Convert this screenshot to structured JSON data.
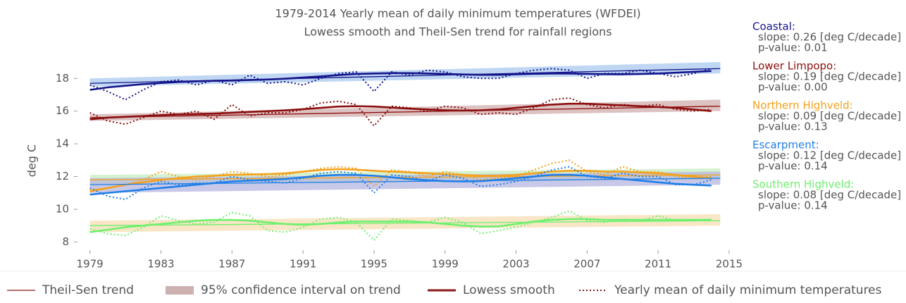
{
  "chart_data": {
    "type": "line",
    "title": "1979-2014 Yearly mean of daily minimum temperatures (WFDEI)",
    "subtitle": "Lowess smooth and Theil-Sen trend for rainfall regions",
    "y_label": "deg C",
    "x": [
      1979,
      1980,
      1981,
      1982,
      1983,
      1984,
      1985,
      1986,
      1987,
      1988,
      1989,
      1990,
      1991,
      1992,
      1993,
      1994,
      1995,
      1996,
      1997,
      1998,
      1999,
      2000,
      2001,
      2002,
      2003,
      2004,
      2005,
      2006,
      2007,
      2008,
      2009,
      2010,
      2011,
      2012,
      2013,
      2014
    ],
    "trend_x": [
      1979,
      2014.5
    ],
    "xlim": [
      1978.3,
      2015.2
    ],
    "ylim": [
      7.5,
      21.5
    ],
    "xticks": [
      1979,
      1983,
      1987,
      1991,
      1995,
      1999,
      2003,
      2007,
      2011,
      2015
    ],
    "yticks": [
      8,
      10,
      12,
      14,
      16,
      18
    ],
    "grid": false,
    "legend": [
      "Theil-Sen trend",
      "95% confidence interval on trend",
      "Lowess smooth",
      "Yearly mean of daily minimum temperatures"
    ],
    "legend_color": "#8b1a1a",
    "legend_band_color": "#cdb0b0",
    "series": [
      {
        "name": "Coastal:",
        "color": "#14148a",
        "band_color": "#a9c9ef",
        "annotation": [
          "slope: 0.26 [deg C/decade]",
          "p-value: 0.01"
        ],
        "values": [
          17.6,
          17.2,
          16.7,
          17.3,
          17.8,
          17.9,
          17.6,
          17.9,
          17.6,
          18.2,
          17.7,
          17.8,
          17.6,
          18.0,
          18.3,
          18.4,
          17.2,
          18.4,
          18.2,
          18.5,
          18.4,
          18.1,
          18.0,
          18.0,
          18.3,
          18.5,
          18.6,
          18.5,
          18.0,
          18.3,
          18.3,
          18.5,
          18.3,
          18.1,
          18.3,
          18.6
        ],
        "lowess": [
          17.3,
          17.45,
          17.55,
          17.65,
          17.72,
          17.78,
          17.82,
          17.85,
          17.87,
          17.9,
          17.93,
          17.98,
          18.05,
          18.12,
          18.2,
          18.27,
          18.3,
          18.32,
          18.32,
          18.3,
          18.27,
          18.24,
          18.22,
          18.22,
          18.25,
          18.28,
          18.3,
          18.3,
          18.28,
          18.26,
          18.25,
          18.27,
          18.3,
          18.35,
          18.4,
          18.45
        ],
        "trend": [
          17.7,
          18.6
        ],
        "ci_lower": [
          17.5,
          18.3
        ],
        "ci_upper": [
          18.0,
          19.0
        ]
      },
      {
        "name": "Lower Limpopo:",
        "color": "#8b0d0d",
        "band_color": "#d2aeae",
        "annotation": [
          "slope: 0.19 [deg C/decade]",
          "p-value: 0.00"
        ],
        "values": [
          15.9,
          15.4,
          15.2,
          15.6,
          16.0,
          15.8,
          16.0,
          15.5,
          16.4,
          15.7,
          15.9,
          15.9,
          16.1,
          16.5,
          16.6,
          16.4,
          15.1,
          16.3,
          16.2,
          16.0,
          16.3,
          16.2,
          15.8,
          15.9,
          15.8,
          16.2,
          16.7,
          16.8,
          16.4,
          16.2,
          16.4,
          16.3,
          16.4,
          16.1,
          16.0,
          16.1
        ],
        "lowess": [
          15.5,
          15.6,
          15.65,
          15.7,
          15.75,
          15.8,
          15.82,
          15.85,
          15.9,
          15.95,
          16.0,
          16.05,
          16.12,
          16.2,
          16.28,
          16.3,
          16.28,
          16.22,
          16.15,
          16.1,
          16.05,
          16.03,
          16.05,
          16.1,
          16.2,
          16.3,
          16.4,
          16.45,
          16.45,
          16.4,
          16.35,
          16.3,
          16.25,
          16.2,
          16.1,
          16.0
        ],
        "trend": [
          15.6,
          16.3
        ],
        "ci_lower": [
          15.4,
          16.0
        ],
        "ci_upper": [
          15.8,
          16.7
        ]
      },
      {
        "name": "Northern Highveld:",
        "color": "#f5a11c",
        "band_color": "#c5eec0",
        "annotation": [
          "slope: 0.09 [deg C/decade]",
          "p-value: 0.13"
        ],
        "values": [
          11.2,
          11.3,
          11.5,
          11.8,
          12.3,
          12.0,
          11.8,
          12.0,
          12.3,
          12.2,
          12.0,
          12.1,
          12.3,
          12.5,
          12.6,
          12.5,
          11.4,
          12.4,
          12.3,
          12.0,
          12.3,
          12.1,
          11.8,
          11.9,
          12.0,
          12.4,
          12.8,
          13.0,
          12.3,
          12.1,
          12.6,
          12.3,
          12.3,
          12.0,
          11.9,
          12.0
        ],
        "lowess": [
          11.1,
          11.3,
          11.5,
          11.65,
          11.8,
          11.9,
          12.0,
          12.05,
          12.1,
          12.12,
          12.15,
          12.2,
          12.3,
          12.4,
          12.45,
          12.42,
          12.35,
          12.3,
          12.25,
          12.2,
          12.15,
          12.1,
          12.05,
          12.05,
          12.1,
          12.2,
          12.3,
          12.35,
          12.35,
          12.3,
          12.3,
          12.25,
          12.2,
          12.1,
          12.0,
          11.9
        ],
        "trend": [
          11.8,
          12.1
        ],
        "ci_lower": [
          11.5,
          11.8
        ],
        "ci_upper": [
          12.1,
          12.5
        ]
      },
      {
        "name": "Escarpment:",
        "color": "#1f7fe8",
        "band_color": "#b6b6e2",
        "annotation": [
          "slope: 0.12 [deg C/decade]",
          "p-value: 0.14"
        ],
        "values": [
          11.3,
          10.8,
          10.6,
          11.3,
          11.7,
          11.5,
          11.6,
          11.6,
          12.0,
          11.8,
          11.7,
          11.6,
          11.9,
          12.2,
          12.3,
          12.2,
          11.0,
          12.1,
          12.0,
          11.7,
          12.1,
          11.9,
          11.4,
          11.5,
          11.7,
          12.0,
          12.4,
          12.6,
          12.0,
          11.9,
          12.2,
          12.0,
          12.0,
          11.5,
          11.5,
          11.8
        ],
        "lowess": [
          10.9,
          11.0,
          11.1,
          11.2,
          11.3,
          11.4,
          11.5,
          11.6,
          11.7,
          11.75,
          11.8,
          11.85,
          11.95,
          12.05,
          12.1,
          12.1,
          12.05,
          11.95,
          11.85,
          11.78,
          11.72,
          11.7,
          11.72,
          11.8,
          11.9,
          12.0,
          12.1,
          12.1,
          12.05,
          11.95,
          11.85,
          11.75,
          11.65,
          11.55,
          11.5,
          11.45
        ],
        "trend": [
          11.5,
          11.9
        ],
        "ci_lower": [
          11.0,
          11.5
        ],
        "ci_upper": [
          11.9,
          12.3
        ]
      },
      {
        "name": "Southern Highveld:",
        "color": "#6ef06e",
        "band_color": "#f5ddb3",
        "annotation": [
          "slope: 0.08 [deg C/decade]",
          "p-value: 0.14"
        ],
        "values": [
          8.8,
          8.5,
          8.4,
          8.9,
          9.6,
          9.3,
          9.1,
          9.2,
          9.8,
          9.6,
          8.7,
          8.6,
          8.9,
          9.4,
          9.5,
          9.2,
          8.1,
          9.4,
          9.3,
          9.2,
          9.5,
          9.2,
          8.5,
          8.7,
          8.9,
          9.2,
          9.5,
          9.9,
          9.3,
          9.2,
          9.4,
          9.3,
          9.6,
          9.3,
          9.3,
          9.4
        ],
        "lowess": [
          8.6,
          8.75,
          8.9,
          9.0,
          9.1,
          9.2,
          9.3,
          9.35,
          9.35,
          9.3,
          9.2,
          9.1,
          9.05,
          9.1,
          9.2,
          9.25,
          9.25,
          9.25,
          9.25,
          9.2,
          9.1,
          9.0,
          8.95,
          8.95,
          9.1,
          9.25,
          9.35,
          9.4,
          9.4,
          9.35,
          9.35,
          9.35,
          9.35,
          9.35,
          9.35,
          9.35
        ],
        "trend": [
          9.0,
          9.3
        ],
        "ci_lower": [
          8.6,
          9.0
        ],
        "ci_upper": [
          9.3,
          9.7
        ]
      }
    ]
  }
}
